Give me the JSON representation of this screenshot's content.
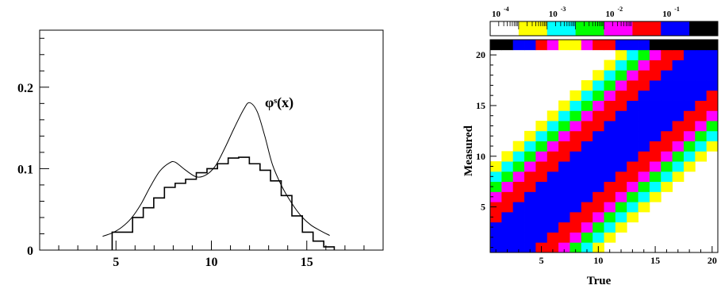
{
  "chart_data": [
    {
      "type": "line",
      "annotation": "φˢ(x)",
      "xlim": [
        1,
        19
      ],
      "ylim": [
        0,
        0.27
      ],
      "x_ticks": [
        5,
        10,
        15
      ],
      "y_ticks": [
        0,
        0.1,
        0.2
      ],
      "x_tick_labels": [
        "5",
        "10",
        "15"
      ],
      "y_tick_labels": [
        "0",
        "0.1",
        "0.2"
      ],
      "histogram": {
        "edges": [
          4.8,
          5.87,
          6.43,
          6.98,
          7.54,
          8.1,
          8.65,
          9.21,
          9.77,
          10.32,
          10.88,
          11.43,
          11.99,
          12.55,
          13.1,
          13.66,
          14.22,
          14.77,
          15.33,
          15.89,
          16.44
        ],
        "values": [
          0.022,
          0.04,
          0.052,
          0.064,
          0.077,
          0.082,
          0.087,
          0.095,
          0.1,
          0.106,
          0.113,
          0.114,
          0.106,
          0.098,
          0.085,
          0.067,
          0.042,
          0.022,
          0.011,
          0.004
        ]
      },
      "curve": {
        "x": [
          4.3,
          4.8,
          5.3,
          5.8,
          6.3,
          6.8,
          7.3,
          7.8,
          8.1,
          8.6,
          9.2,
          9.7,
          10.2,
          10.7,
          11.2,
          11.7,
          12.0,
          12.4,
          12.8,
          13.2,
          13.7,
          14.2,
          14.7,
          15.2,
          15.7,
          16.2
        ],
        "y": [
          0.017,
          0.021,
          0.028,
          0.039,
          0.056,
          0.078,
          0.097,
          0.107,
          0.108,
          0.099,
          0.09,
          0.092,
          0.103,
          0.125,
          0.15,
          0.173,
          0.181,
          0.17,
          0.14,
          0.105,
          0.078,
          0.058,
          0.042,
          0.031,
          0.024,
          0.018
        ]
      }
    },
    {
      "type": "heatmap",
      "xlabel": "True",
      "ylabel": "Measured",
      "x_tick_labels": [
        "5",
        "10",
        "15",
        "20"
      ],
      "y_tick_labels": [
        "5",
        "10",
        "15",
        "20"
      ],
      "scale_labels": [
        "10-4",
        "10-3",
        "10-2",
        "10-1"
      ],
      "colors": [
        "#ffffff",
        "#ffff00",
        "#00ffff",
        "#00ff00",
        "#ff00ff",
        "#ff0000",
        "#0000ff",
        "#000000"
      ],
      "grid": {
        "nx": 20,
        "ny": 21
      },
      "level_by_distance": [
        6,
        6,
        6,
        5,
        5,
        4,
        3,
        2,
        1
      ],
      "top_row_levels": [
        7,
        7,
        6,
        6,
        5,
        4,
        1,
        1,
        4,
        5,
        5,
        6,
        6,
        6,
        7,
        7,
        7,
        7,
        7,
        7
      ]
    }
  ]
}
